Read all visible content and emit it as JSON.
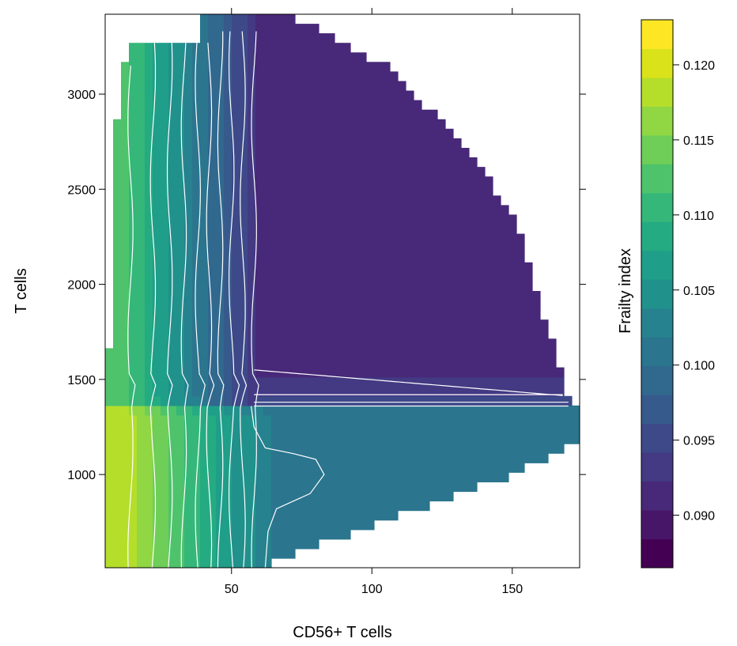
{
  "chart_data": {
    "type": "heatmap",
    "title": "",
    "xlabel": "CD56+ T cells",
    "ylabel": "T cells",
    "xlim": [
      5,
      174
    ],
    "ylim": [
      510,
      3420
    ],
    "xticks": [
      50,
      100,
      150
    ],
    "yticks": [
      1000,
      1500,
      2000,
      2500,
      3000
    ],
    "grid": false,
    "colorbar": {
      "label": "Frailty index",
      "range": [
        0.0865,
        0.123
      ],
      "levels": 17,
      "ticks": [
        0.09,
        0.095,
        0.1,
        0.105,
        0.11,
        0.115,
        0.12
      ],
      "tick_labels": [
        "0.090",
        "0.095",
        "0.100",
        "0.105",
        "0.110",
        "0.115",
        "0.120"
      ]
    },
    "palette": "viridis",
    "colors": [
      "#440154",
      "#481668",
      "#482878",
      "#443983",
      "#3e4989",
      "#375a8c",
      "#31688e",
      "#2b758e",
      "#26828e",
      "#21918c",
      "#1f9e89",
      "#25ab82",
      "#35b779",
      "#4ec36b",
      "#6ece58",
      "#90d743",
      "#b5de2b",
      "#dae319",
      "#fde725"
    ],
    "contour_color": "#ffffff",
    "regions": {
      "low_left": [
        [
          5,
          510
        ],
        [
          5,
          1360
        ],
        [
          63,
          1360
        ],
        [
          63,
          510
        ]
      ],
      "high_right": [
        [
          58,
          1400
        ],
        [
          58,
          3420
        ],
        [
          70,
          3420
        ],
        [
          105,
          3150
        ],
        [
          135,
          2700
        ],
        [
          152,
          2300
        ],
        [
          160,
          1900
        ],
        [
          166,
          1600
        ],
        [
          170,
          1400
        ]
      ],
      "lower_band": [
        [
          63,
          510
        ],
        [
          63,
          1360
        ],
        [
          174,
          1360
        ],
        [
          174,
          1180
        ],
        [
          150,
          1000
        ],
        [
          105,
          760
        ],
        [
          75,
          600
        ],
        [
          60,
          510
        ]
      ]
    },
    "contours": {
      "vertical": [
        {
          "x": 14,
          "value": 0.118
        },
        {
          "x": 22,
          "value": 0.116
        },
        {
          "x": 28,
          "value": 0.114
        },
        {
          "x": 33,
          "value": 0.112
        },
        {
          "x": 38,
          "value": 0.11
        },
        {
          "x": 42,
          "value": 0.108
        },
        {
          "x": 46,
          "value": 0.106
        },
        {
          "x": 50,
          "value": 0.104
        },
        {
          "x": 54,
          "value": 0.102
        },
        {
          "x": 58,
          "value": 0.1
        }
      ],
      "horizontal": [
        {
          "y": 1550,
          "value": 0.094
        },
        {
          "y": 1420,
          "value": 0.096
        },
        {
          "y": 1380,
          "value": 0.098
        },
        {
          "y": 1360,
          "value": 0.099
        }
      ]
    }
  }
}
